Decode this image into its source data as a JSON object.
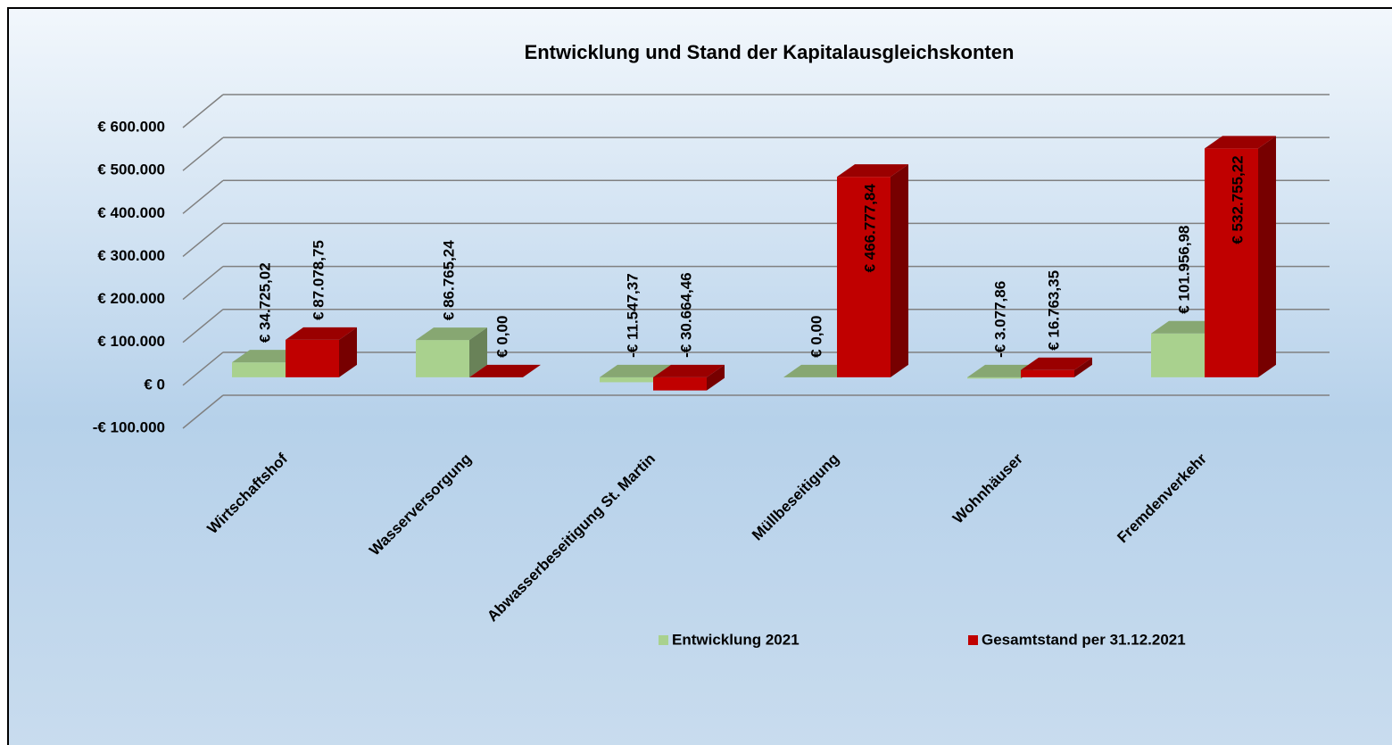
{
  "chart_data": {
    "type": "bar3d",
    "title": "Entwicklung und Stand der Kapitalausgleichskonten",
    "categories": [
      "Wirtschaftshof",
      "Wasserversorgung",
      "Abwasserbeseitigung St. Martin",
      "Müllbeseitigung",
      "Wohnhäuser",
      "Fremdenverkehr"
    ],
    "series": [
      {
        "name": "Entwicklung 2021",
        "color": "#a9d18e",
        "values": [
          34725.02,
          86765.24,
          -11547.37,
          0,
          -3077.86,
          101956.98
        ],
        "value_labels": [
          "€ 34.725,02",
          "€ 86.765,24",
          "-€ 11.547,37",
          "€ 0,00",
          "-€ 3.077,86",
          "€ 101.956,98"
        ]
      },
      {
        "name": "Gesamtstand per 31.12.2021",
        "color": "#c00000",
        "values": [
          87078.75,
          0,
          -30664.46,
          466777.84,
          16763.35,
          532755.22
        ],
        "value_labels": [
          "€ 87.078,75",
          "€ 0,00",
          "-€ 30.664,46",
          "€ 466.777,84",
          "€ 16.763,35",
          "€ 532.755,22"
        ]
      }
    ],
    "ylim": [
      -100000,
      600000
    ],
    "yticks": [
      {
        "value": -100000,
        "label": "-€ 100.000"
      },
      {
        "value": 0,
        "label": "€ 0"
      },
      {
        "value": 100000,
        "label": "€ 100.000"
      },
      {
        "value": 200000,
        "label": "€ 200.000"
      },
      {
        "value": 300000,
        "label": "€ 300.000"
      },
      {
        "value": 400000,
        "label": "€ 400.000"
      },
      {
        "value": 500000,
        "label": "€ 500.000"
      },
      {
        "value": 600000,
        "label": "€ 600.000"
      }
    ],
    "grid": true,
    "legend": "bottom"
  }
}
